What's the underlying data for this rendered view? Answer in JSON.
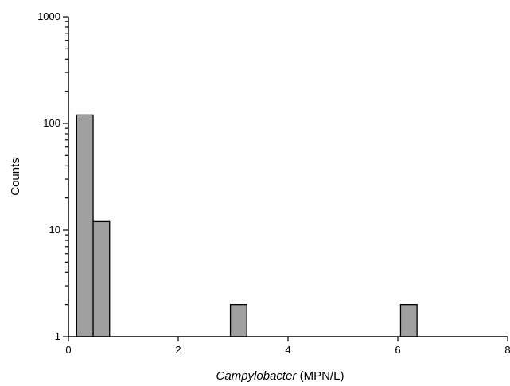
{
  "chart_data": {
    "type": "bar",
    "title": "",
    "xlabel_italic": "Campylobacter",
    "xlabel_rest": " (MPN/L)",
    "ylabel": "Counts",
    "xlim": [
      0,
      8
    ],
    "ylim": [
      1,
      1000
    ],
    "y_scale": "log",
    "x_ticks": [
      0,
      2,
      4,
      6,
      8
    ],
    "y_ticks": [
      1,
      10,
      100,
      1000
    ],
    "bins": [
      {
        "x0": 0.15,
        "x1": 0.45,
        "count": 120
      },
      {
        "x0": 0.45,
        "x1": 0.75,
        "count": 12
      },
      {
        "x0": 2.95,
        "x1": 3.25,
        "count": 2
      },
      {
        "x0": 6.05,
        "x1": 6.35,
        "count": 2
      }
    ],
    "bar_color": "#a0a0a0",
    "grid": false,
    "legend": "none"
  }
}
